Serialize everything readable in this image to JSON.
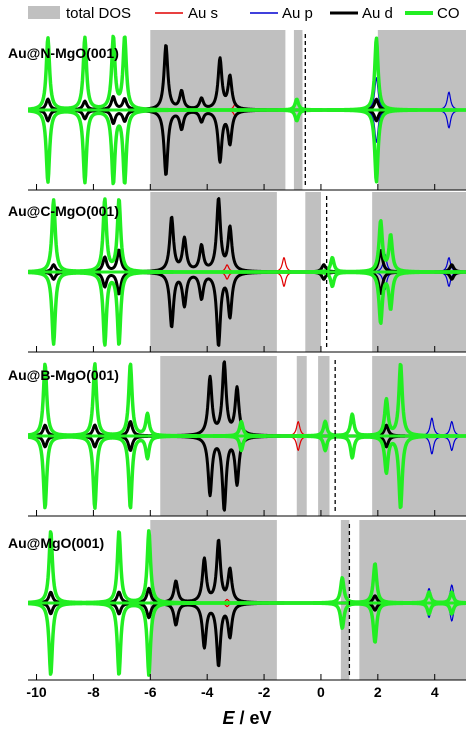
{
  "chart_data": {
    "type": "line",
    "xlabel_symbol": "E",
    "xlabel_unit": " / eV",
    "xlim": [
      -10.3,
      5.1
    ],
    "x_ticks": [
      -10,
      -8,
      -6,
      -4,
      -2,
      0,
      2,
      4
    ],
    "x_tick_labels": [
      "-10",
      "-8",
      "-6",
      "-4",
      "-2",
      "0",
      "2",
      "4"
    ],
    "legend": [
      {
        "name": "total DOS",
        "color": "#c0c0c0",
        "kind": "fill"
      },
      {
        "name": "Au s",
        "color": "#e00000",
        "kind": "line"
      },
      {
        "name": "Au p",
        "color": "#0000d0",
        "kind": "line"
      },
      {
        "name": "Au d",
        "color": "#000000",
        "kind": "line"
      },
      {
        "name": "CO",
        "color": "#22ee22",
        "kind": "line"
      }
    ],
    "panels": [
      {
        "label": "Au@N-MgO(001)",
        "fermi": -0.55,
        "total_dos_bands": [
          [
            -6.0,
            -1.25
          ],
          [
            -0.95,
            -0.65
          ],
          [
            2.0,
            5.1
          ]
        ],
        "co_peaks": [
          [
            -9.6,
            1.0
          ],
          [
            -8.3,
            1.0
          ],
          [
            -7.3,
            1.0
          ],
          [
            -6.9,
            1.0
          ],
          [
            -0.85,
            0.15
          ],
          [
            1.95,
            1.0
          ]
        ],
        "aud_peaks": [
          [
            -9.6,
            0.15
          ],
          [
            -8.3,
            0.12
          ],
          [
            -7.3,
            0.18
          ],
          [
            -6.9,
            0.15
          ],
          [
            -5.45,
            0.9
          ],
          [
            -4.9,
            0.25
          ],
          [
            -4.2,
            0.15
          ],
          [
            -3.55,
            0.7
          ],
          [
            -3.2,
            0.45
          ],
          [
            1.95,
            0.15
          ]
        ],
        "aus_peaks": [
          [
            -3.0,
            0.1
          ]
        ],
        "aup_peaks": [
          [
            1.95,
            0.45
          ],
          [
            4.5,
            0.25
          ]
        ]
      },
      {
        "label": "Au@C-MgO(001)",
        "fermi": 0.2,
        "total_dos_bands": [
          [
            -6.0,
            -1.55
          ],
          [
            -0.55,
            0.0
          ],
          [
            1.8,
            5.1
          ]
        ],
        "co_peaks": [
          [
            -9.4,
            1.0
          ],
          [
            -7.6,
            1.0
          ],
          [
            -7.1,
            1.0
          ],
          [
            0.4,
            0.2
          ],
          [
            2.1,
            0.7
          ],
          [
            2.45,
            0.5
          ]
        ],
        "aud_peaks": [
          [
            -9.4,
            0.1
          ],
          [
            -7.6,
            0.2
          ],
          [
            -7.1,
            0.3
          ],
          [
            -5.25,
            0.75
          ],
          [
            -4.8,
            0.45
          ],
          [
            -4.2,
            0.35
          ],
          [
            -3.6,
            1.0
          ],
          [
            -3.2,
            0.6
          ],
          [
            0.1,
            0.1
          ],
          [
            2.1,
            0.3
          ],
          [
            4.6,
            0.1
          ]
        ],
        "aus_peaks": [
          [
            -1.3,
            0.2
          ],
          [
            -3.3,
            0.1
          ]
        ],
        "aup_peaks": [
          [
            2.25,
            0.25
          ],
          [
            4.5,
            0.2
          ]
        ]
      },
      {
        "label": "Au@B-MgO(001)",
        "fermi": 0.5,
        "total_dos_bands": [
          [
            -5.65,
            -1.55
          ],
          [
            -0.85,
            -0.5
          ],
          [
            -0.1,
            0.3
          ],
          [
            1.8,
            5.1
          ]
        ],
        "co_peaks": [
          [
            -9.7,
            1.0
          ],
          [
            -7.95,
            1.0
          ],
          [
            -6.7,
            1.0
          ],
          [
            -6.1,
            0.3
          ],
          [
            -2.8,
            0.2
          ],
          [
            0.15,
            0.2
          ],
          [
            1.1,
            0.3
          ],
          [
            2.3,
            0.5
          ],
          [
            2.8,
            1.0
          ]
        ],
        "aud_peaks": [
          [
            -9.7,
            0.15
          ],
          [
            -7.95,
            0.15
          ],
          [
            -6.7,
            0.2
          ],
          [
            -3.9,
            0.8
          ],
          [
            -3.4,
            1.0
          ],
          [
            -2.95,
            0.65
          ],
          [
            2.3,
            0.15
          ]
        ],
        "aus_peaks": [
          [
            -0.8,
            0.2
          ]
        ],
        "aup_peaks": [
          [
            3.9,
            0.25
          ],
          [
            4.6,
            0.2
          ]
        ]
      },
      {
        "label": "Au@MgO(001)",
        "fermi": 1.0,
        "total_dos_bands": [
          [
            -6.0,
            -1.55
          ],
          [
            0.7,
            1.0
          ],
          [
            1.35,
            5.1
          ]
        ],
        "co_peaks": [
          [
            -9.5,
            1.0
          ],
          [
            -7.1,
            1.0
          ],
          [
            -6.05,
            1.0
          ],
          [
            0.75,
            0.35
          ],
          [
            1.9,
            0.55
          ],
          [
            3.8,
            0.15
          ],
          [
            4.6,
            0.15
          ]
        ],
        "aud_peaks": [
          [
            -9.5,
            0.15
          ],
          [
            -7.1,
            0.15
          ],
          [
            -6.05,
            0.2
          ],
          [
            -5.1,
            0.3
          ],
          [
            -4.1,
            0.6
          ],
          [
            -3.6,
            0.85
          ],
          [
            -3.2,
            0.45
          ],
          [
            1.9,
            0.1
          ]
        ],
        "aus_peaks": [
          [
            -3.3,
            0.05
          ]
        ],
        "aup_peaks": [
          [
            3.8,
            0.2
          ],
          [
            4.6,
            0.25
          ]
        ]
      }
    ]
  }
}
